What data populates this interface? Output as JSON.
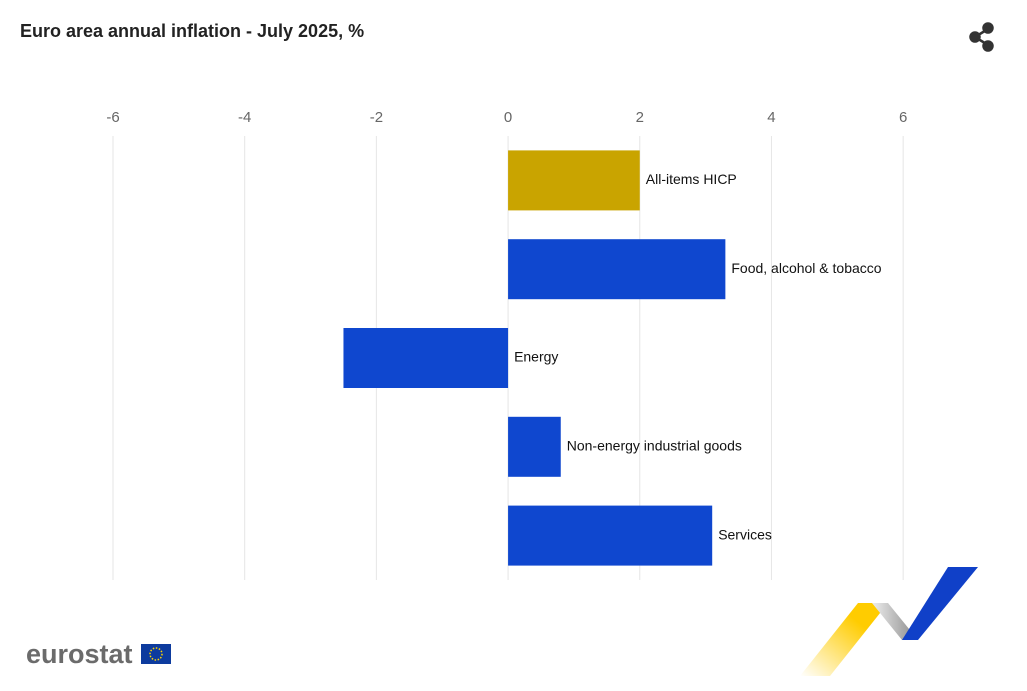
{
  "chart_data": {
    "type": "hbar",
    "title": "Euro area annual inflation - July 2025, %",
    "categories": [
      "All-items HICP",
      "Food, alcohol & tobacco",
      "Energy",
      "Non-energy industrial goods",
      "Services"
    ],
    "values": [
      2.0,
      3.3,
      -2.5,
      0.8,
      3.1
    ],
    "colors": [
      "#c9a400",
      "#0f47cf",
      "#0f47cf",
      "#0f47cf",
      "#0f47cf"
    ],
    "xlim": [
      -6,
      7
    ],
    "xticks": [
      -6,
      -4,
      -2,
      0,
      2,
      4,
      6
    ],
    "grid": true
  },
  "logo": "eurostat"
}
